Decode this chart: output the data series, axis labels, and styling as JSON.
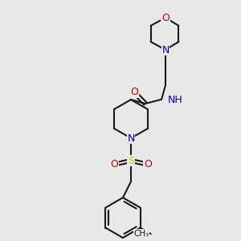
{
  "bg_color": "#e8e8e8",
  "bond_color": "#1a1a1a",
  "bond_width": 1.5,
  "atom_colors": {
    "N": "#0000cc",
    "O": "#cc0000",
    "S": "#cccc00",
    "C": "#1a1a1a",
    "H": "#6a8a6a"
  },
  "font_size_atom": 9,
  "font_size_small": 7.5
}
